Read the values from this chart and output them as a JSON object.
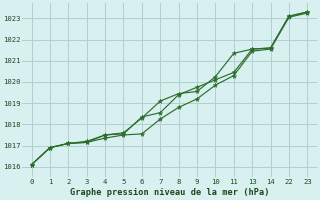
{
  "title": "Graphe pression niveau de la mer (hPa)",
  "bg_color": "#d8f0f0",
  "grid_color": "#b0d0d0",
  "line_color": "#2d6e2d",
  "x_labels": [
    "0",
    "1",
    "2",
    "3",
    "4",
    "5",
    "6",
    "7",
    "8",
    "9",
    "10",
    "11",
    "13",
    "14",
    "22",
    "23"
  ],
  "ylim": [
    1015.5,
    1023.7
  ],
  "yticks": [
    1016,
    1017,
    1018,
    1019,
    1020,
    1021,
    1022,
    1023
  ],
  "series1": [
    1016.1,
    1016.9,
    1017.1,
    1017.15,
    1017.35,
    1017.5,
    1017.55,
    1018.25,
    1018.8,
    1019.2,
    1019.85,
    1020.3,
    1021.45,
    1021.55,
    1023.05,
    1023.25
  ],
  "series2": [
    1016.1,
    1016.9,
    1017.1,
    1017.15,
    1017.5,
    1017.55,
    1018.35,
    1018.55,
    1019.4,
    1019.75,
    1020.1,
    1020.45,
    1021.55,
    1021.6,
    1023.1,
    1023.3
  ],
  "series3": [
    1016.1,
    1016.9,
    1017.1,
    1017.2,
    1017.5,
    1017.6,
    1018.3,
    1019.1,
    1019.45,
    1019.55,
    1020.25,
    1021.35,
    1021.55,
    1021.6,
    1023.1,
    1023.3
  ]
}
